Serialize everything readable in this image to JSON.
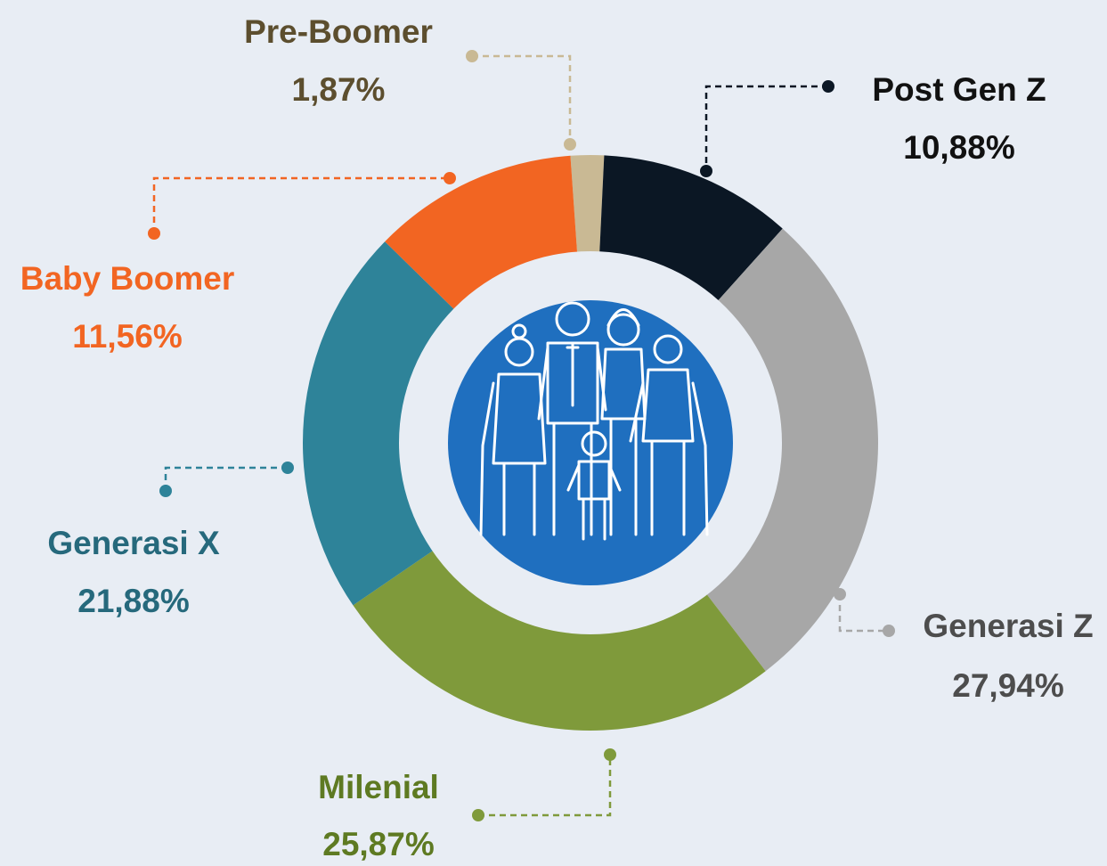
{
  "chart_data": {
    "type": "pie",
    "categories": [
      "Pre-Boomer",
      "Post Gen Z",
      "Generasi Z",
      "Milenial",
      "Generasi X",
      "Baby Boomer"
    ],
    "values": [
      1.87,
      10.88,
      27.94,
      25.87,
      21.88,
      11.56
    ],
    "value_labels": [
      "1,87%",
      "10,88%",
      "27,94%",
      "25,87%",
      "21,88%",
      "11,56%"
    ],
    "colors": [
      "#c9b994",
      "#0b1724",
      "#a7a7a7",
      "#7f9a3b",
      "#2e8399",
      "#f26522"
    ],
    "label_colors": [
      "#5c4e2e",
      "#111111",
      "#4d4d4d",
      "#5e7a22",
      "#26697c",
      "#f26522"
    ]
  }
}
